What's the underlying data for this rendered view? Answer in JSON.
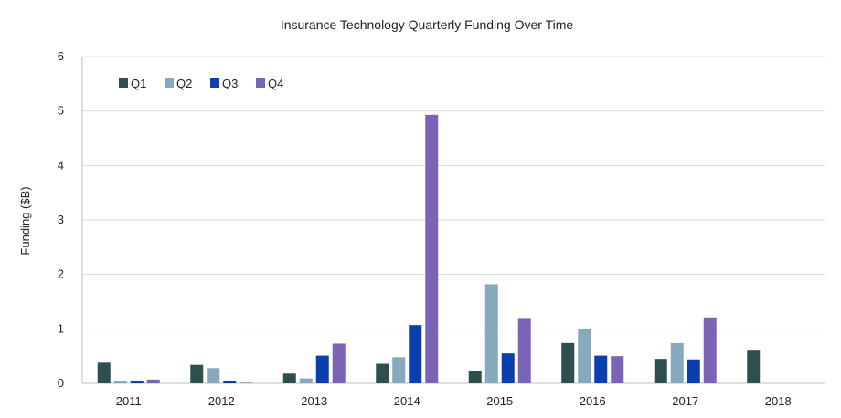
{
  "chart_data": {
    "type": "bar",
    "title": "Insurance Technology Quarterly Funding Over Time",
    "xlabel": "",
    "ylabel": "Funding ($B)",
    "ylim": [
      0,
      6
    ],
    "yticks": [
      "0",
      "1",
      "2",
      "3",
      "4",
      "5",
      "6"
    ],
    "grid": true,
    "legend_position": "top-left",
    "categories": [
      "2011",
      "2012",
      "2013",
      "2014",
      "2015",
      "2016",
      "2017",
      "2018"
    ],
    "series": [
      {
        "name": "Q1",
        "color": "#2f4f4f",
        "values": [
          0.38,
          0.34,
          0.18,
          0.36,
          0.23,
          0.74,
          0.45,
          0.6
        ]
      },
      {
        "name": "Q2",
        "color": "#87a9bd",
        "values": [
          0.05,
          0.28,
          0.09,
          0.48,
          1.82,
          0.99,
          0.74,
          null
        ]
      },
      {
        "name": "Q3",
        "color": "#0a3fb0",
        "values": [
          0.05,
          0.04,
          0.51,
          1.07,
          0.55,
          0.51,
          0.44,
          null
        ]
      },
      {
        "name": "Q4",
        "color": "#7b64b8",
        "values": [
          0.07,
          0.01,
          0.73,
          4.93,
          1.2,
          0.5,
          1.21,
          null
        ]
      }
    ]
  }
}
